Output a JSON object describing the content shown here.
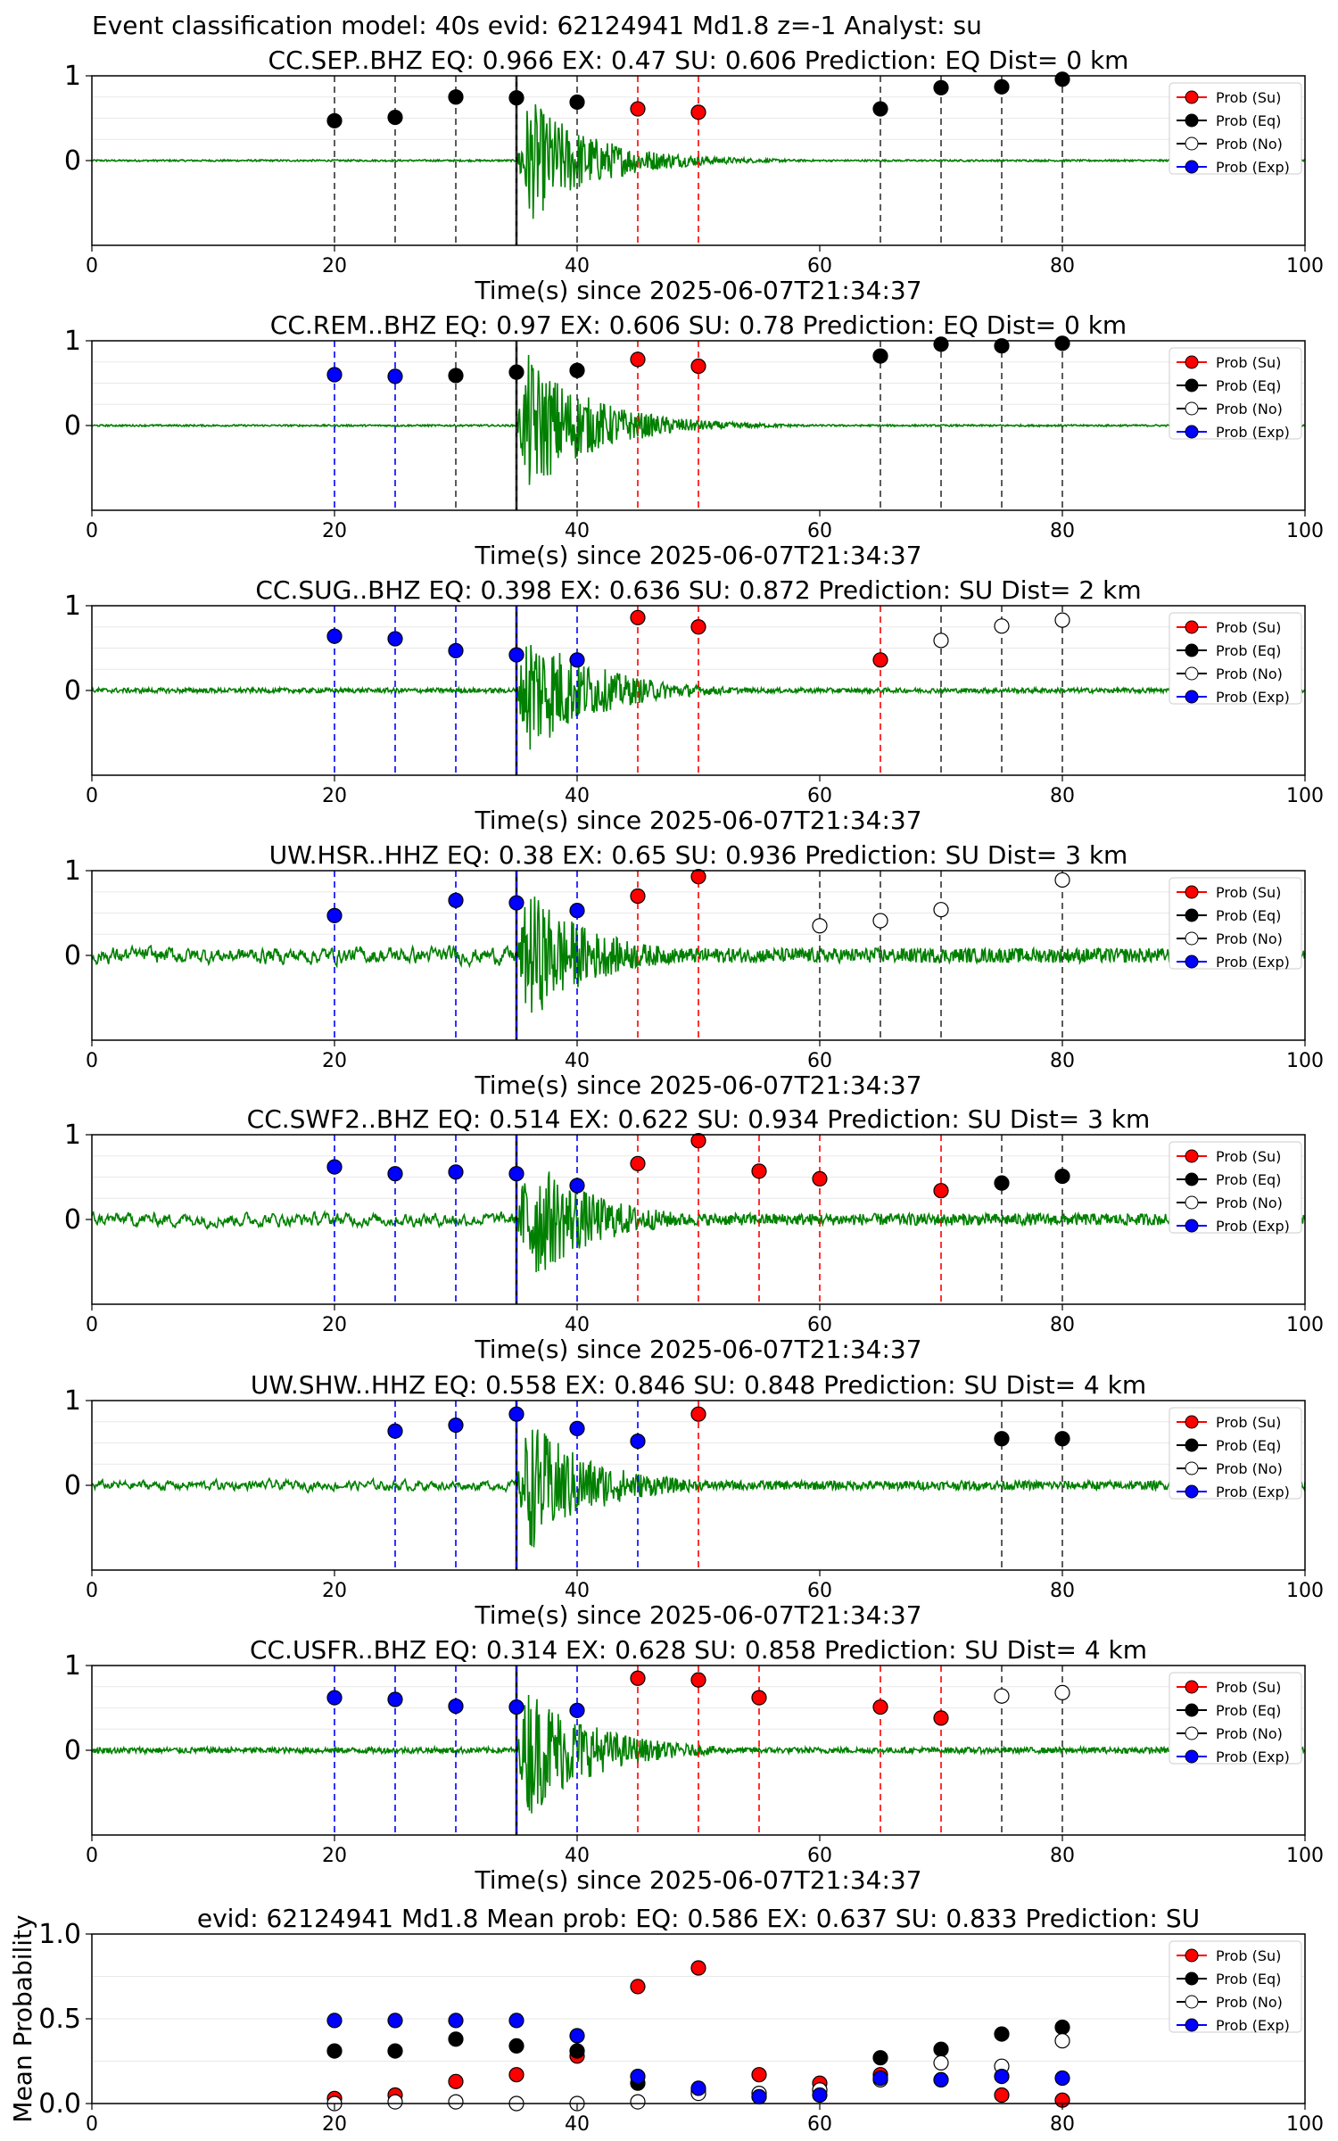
{
  "suptitle": "Event classification model: 40s evid: 62124941 Md1.8 z=-1 Analyst: su",
  "legend": {
    "items": [
      {
        "label": "Prob (Su)",
        "color": "#ff0000",
        "fill": "red"
      },
      {
        "label": "Prob (Eq)",
        "color": "#000000",
        "fill": "black"
      },
      {
        "label": "Prob (No)",
        "color": "#000000",
        "fill": "white"
      },
      {
        "label": "Prob (Exp)",
        "color": "#0000ff",
        "fill": "blue"
      }
    ]
  },
  "colors": {
    "waveform": "#008000",
    "su": "#ff0000",
    "eq": "#000000",
    "no": "#ffffff",
    "exp": "#0000ff",
    "pick": "#000000"
  },
  "chart_data": [
    {
      "type": "scatter",
      "station": "CC.SEP..BHZ",
      "title": "CC.SEP..BHZ   EQ: 0.966  EX: 0.47  SU: 0.606   Prediction: EQ    Dist= 0 km",
      "xlabel": "Time(s) since 2025-06-07T21:34:37",
      "xlim": [
        0,
        100
      ],
      "ylim": [
        -1,
        1
      ],
      "yticks": [
        0,
        1
      ],
      "xticks": [
        0,
        20,
        40,
        60,
        80,
        100
      ],
      "pick_time": 35,
      "noise": 0.03,
      "amp": 0.9,
      "points": [
        {
          "x": 20,
          "y": 0.47,
          "c": "eq"
        },
        {
          "x": 25,
          "y": 0.51,
          "c": "eq"
        },
        {
          "x": 30,
          "y": 0.75,
          "c": "eq"
        },
        {
          "x": 35,
          "y": 0.74,
          "c": "eq"
        },
        {
          "x": 40,
          "y": 0.69,
          "c": "eq"
        },
        {
          "x": 45,
          "y": 0.61,
          "c": "su"
        },
        {
          "x": 50,
          "y": 0.57,
          "c": "su"
        },
        {
          "x": 65,
          "y": 0.61,
          "c": "eq"
        },
        {
          "x": 70,
          "y": 0.86,
          "c": "eq"
        },
        {
          "x": 75,
          "y": 0.87,
          "c": "eq"
        },
        {
          "x": 80,
          "y": 0.96,
          "c": "eq"
        }
      ]
    },
    {
      "type": "scatter",
      "station": "CC.REM..BHZ",
      "title": "CC.REM..BHZ   EQ: 0.97  EX: 0.606  SU: 0.78   Prediction: EQ    Dist= 0 km",
      "xlabel": "Time(s) since 2025-06-07T21:34:37",
      "xlim": [
        0,
        100
      ],
      "ylim": [
        -1,
        1
      ],
      "yticks": [
        0,
        1
      ],
      "xticks": [
        0,
        20,
        40,
        60,
        80,
        100
      ],
      "pick_time": 35,
      "noise": 0.03,
      "amp": 1.0,
      "points": [
        {
          "x": 20,
          "y": 0.6,
          "c": "exp"
        },
        {
          "x": 25,
          "y": 0.58,
          "c": "exp"
        },
        {
          "x": 30,
          "y": 0.59,
          "c": "eq"
        },
        {
          "x": 35,
          "y": 0.63,
          "c": "eq"
        },
        {
          "x": 40,
          "y": 0.65,
          "c": "eq"
        },
        {
          "x": 45,
          "y": 0.78,
          "c": "su"
        },
        {
          "x": 50,
          "y": 0.7,
          "c": "su"
        },
        {
          "x": 65,
          "y": 0.82,
          "c": "eq"
        },
        {
          "x": 70,
          "y": 0.96,
          "c": "eq"
        },
        {
          "x": 75,
          "y": 0.94,
          "c": "eq"
        },
        {
          "x": 80,
          "y": 0.97,
          "c": "eq"
        }
      ]
    },
    {
      "type": "scatter",
      "station": "CC.SUG..BHZ",
      "title": "CC.SUG..BHZ   EQ: 0.398  EX: 0.636  SU: 0.872   Prediction: SU    Dist= 2 km",
      "xlabel": "Time(s) since 2025-06-07T21:34:37",
      "xlim": [
        0,
        100
      ],
      "ylim": [
        -1,
        1
      ],
      "yticks": [
        0,
        1
      ],
      "xticks": [
        0,
        20,
        40,
        60,
        80,
        100
      ],
      "pick_time": 35,
      "noise": 0.08,
      "amp": 0.95,
      "points": [
        {
          "x": 20,
          "y": 0.64,
          "c": "exp"
        },
        {
          "x": 25,
          "y": 0.61,
          "c": "exp"
        },
        {
          "x": 30,
          "y": 0.47,
          "c": "exp"
        },
        {
          "x": 35,
          "y": 0.42,
          "c": "exp"
        },
        {
          "x": 40,
          "y": 0.36,
          "c": "exp"
        },
        {
          "x": 45,
          "y": 0.86,
          "c": "su"
        },
        {
          "x": 50,
          "y": 0.75,
          "c": "su"
        },
        {
          "x": 65,
          "y": 0.36,
          "c": "su"
        },
        {
          "x": 70,
          "y": 0.59,
          "c": "no"
        },
        {
          "x": 75,
          "y": 0.76,
          "c": "no"
        },
        {
          "x": 80,
          "y": 0.83,
          "c": "no"
        }
      ]
    },
    {
      "type": "scatter",
      "station": "UW.HSR..HHZ",
      "title": "UW.HSR..HHZ   EQ: 0.38  EX: 0.65  SU: 0.936   Prediction: SU    Dist= 3 km",
      "xlabel": "Time(s) since 2025-06-07T21:34:37",
      "xlim": [
        0,
        100
      ],
      "ylim": [
        -1,
        1
      ],
      "yticks": [
        0,
        1
      ],
      "xticks": [
        0,
        20,
        40,
        60,
        80,
        100
      ],
      "pick_time": 35,
      "noise": 0.25,
      "amp": 0.95,
      "points": [
        {
          "x": 20,
          "y": 0.47,
          "c": "exp"
        },
        {
          "x": 30,
          "y": 0.65,
          "c": "exp"
        },
        {
          "x": 35,
          "y": 0.62,
          "c": "exp"
        },
        {
          "x": 40,
          "y": 0.53,
          "c": "exp"
        },
        {
          "x": 45,
          "y": 0.7,
          "c": "su"
        },
        {
          "x": 50,
          "y": 0.93,
          "c": "su"
        },
        {
          "x": 60,
          "y": 0.35,
          "c": "no"
        },
        {
          "x": 65,
          "y": 0.41,
          "c": "no"
        },
        {
          "x": 70,
          "y": 0.54,
          "c": "no"
        },
        {
          "x": 80,
          "y": 0.89,
          "c": "no"
        }
      ]
    },
    {
      "type": "scatter",
      "station": "CC.SWF2..BHZ",
      "title": "CC.SWF2..BHZ   EQ: 0.514  EX: 0.622  SU: 0.934   Prediction: SU    Dist= 3 km",
      "xlabel": "Time(s) since 2025-06-07T21:34:37",
      "xlim": [
        0,
        100
      ],
      "ylim": [
        -1,
        1
      ],
      "yticks": [
        0,
        1
      ],
      "xticks": [
        0,
        20,
        40,
        60,
        80,
        100
      ],
      "pick_time": 35,
      "noise": 0.2,
      "amp": 0.95,
      "points": [
        {
          "x": 20,
          "y": 0.62,
          "c": "exp"
        },
        {
          "x": 25,
          "y": 0.54,
          "c": "exp"
        },
        {
          "x": 30,
          "y": 0.56,
          "c": "exp"
        },
        {
          "x": 35,
          "y": 0.54,
          "c": "exp"
        },
        {
          "x": 40,
          "y": 0.4,
          "c": "exp"
        },
        {
          "x": 45,
          "y": 0.66,
          "c": "su"
        },
        {
          "x": 50,
          "y": 0.93,
          "c": "su"
        },
        {
          "x": 55,
          "y": 0.57,
          "c": "su"
        },
        {
          "x": 60,
          "y": 0.48,
          "c": "su"
        },
        {
          "x": 70,
          "y": 0.34,
          "c": "su"
        },
        {
          "x": 75,
          "y": 0.43,
          "c": "eq"
        },
        {
          "x": 80,
          "y": 0.51,
          "c": "eq"
        }
      ]
    },
    {
      "type": "scatter",
      "station": "UW.SHW..HHZ",
      "title": "UW.SHW..HHZ   EQ: 0.558  EX: 0.846  SU: 0.848   Prediction: SU    Dist= 4 km",
      "xlabel": "Time(s) since 2025-06-07T21:34:37",
      "xlim": [
        0,
        100
      ],
      "ylim": [
        -1,
        1
      ],
      "yticks": [
        0,
        1
      ],
      "xticks": [
        0,
        20,
        40,
        60,
        80,
        100
      ],
      "pick_time": 35,
      "noise": 0.15,
      "amp": 0.95,
      "points": [
        {
          "x": 25,
          "y": 0.64,
          "c": "exp"
        },
        {
          "x": 30,
          "y": 0.71,
          "c": "exp"
        },
        {
          "x": 35,
          "y": 0.84,
          "c": "exp"
        },
        {
          "x": 40,
          "y": 0.67,
          "c": "exp"
        },
        {
          "x": 45,
          "y": 0.52,
          "c": "exp"
        },
        {
          "x": 50,
          "y": 0.84,
          "c": "su"
        },
        {
          "x": 75,
          "y": 0.55,
          "c": "eq"
        },
        {
          "x": 80,
          "y": 0.55,
          "c": "eq"
        }
      ]
    },
    {
      "type": "scatter",
      "station": "CC.USFR..BHZ",
      "title": "CC.USFR..BHZ   EQ: 0.314  EX: 0.628  SU: 0.858   Prediction: SU    Dist= 4 km",
      "xlabel": "Time(s) since 2025-06-07T21:34:37",
      "xlim": [
        0,
        100
      ],
      "ylim": [
        -1,
        1
      ],
      "yticks": [
        0,
        1
      ],
      "xticks": [
        0,
        20,
        40,
        60,
        80,
        100
      ],
      "pick_time": 35,
      "noise": 0.1,
      "amp": 0.95,
      "points": [
        {
          "x": 20,
          "y": 0.62,
          "c": "exp"
        },
        {
          "x": 25,
          "y": 0.6,
          "c": "exp"
        },
        {
          "x": 30,
          "y": 0.52,
          "c": "exp"
        },
        {
          "x": 35,
          "y": 0.51,
          "c": "exp"
        },
        {
          "x": 40,
          "y": 0.47,
          "c": "exp"
        },
        {
          "x": 45,
          "y": 0.85,
          "c": "su"
        },
        {
          "x": 50,
          "y": 0.83,
          "c": "su"
        },
        {
          "x": 55,
          "y": 0.62,
          "c": "su"
        },
        {
          "x": 65,
          "y": 0.51,
          "c": "su"
        },
        {
          "x": 70,
          "y": 0.38,
          "c": "su"
        },
        {
          "x": 75,
          "y": 0.64,
          "c": "no"
        },
        {
          "x": 80,
          "y": 0.68,
          "c": "no"
        }
      ]
    },
    {
      "type": "scatter",
      "station": "mean",
      "title": "evid: 62124941  Md1.8   Mean prob:   EQ: 0.586  EX: 0.637  SU: 0.833   Prediction: SU",
      "xlabel": "",
      "ylabel": "Mean Probability",
      "xlim": [
        0,
        100
      ],
      "ylim": [
        0,
        1
      ],
      "yticks": [
        0.0,
        0.5,
        1.0
      ],
      "ytick_labels": [
        "0.0",
        "0.5",
        "1.0"
      ],
      "xticks": [
        0,
        20,
        40,
        60,
        80,
        100
      ],
      "series": [
        {
          "name": "Prob (Su)",
          "c": "su",
          "x": [
            20,
            25,
            30,
            35,
            40,
            45,
            50,
            55,
            60,
            65,
            70,
            75,
            80
          ],
          "y": [
            0.03,
            0.05,
            0.13,
            0.17,
            0.28,
            0.69,
            0.8,
            0.17,
            0.12,
            0.17,
            0.14,
            0.05,
            0.02
          ]
        },
        {
          "name": "Prob (Eq)",
          "c": "eq",
          "x": [
            20,
            25,
            30,
            35,
            40,
            45,
            50,
            55,
            60,
            65,
            70,
            75,
            80
          ],
          "y": [
            0.31,
            0.31,
            0.38,
            0.34,
            0.31,
            0.12,
            0.08,
            0.04,
            0.08,
            0.27,
            0.32,
            0.41,
            0.45
          ]
        },
        {
          "name": "Prob (No)",
          "c": "no",
          "x": [
            20,
            25,
            30,
            35,
            40,
            45,
            50,
            55,
            60,
            65,
            70,
            75,
            80
          ],
          "y": [
            0.0,
            0.01,
            0.01,
            0.0,
            0.0,
            0.01,
            0.06,
            0.06,
            0.08,
            0.14,
            0.24,
            0.22,
            0.37
          ]
        },
        {
          "name": "Prob (Exp)",
          "c": "exp",
          "x": [
            20,
            25,
            30,
            35,
            40,
            45,
            50,
            55,
            60,
            65,
            70,
            75,
            80
          ],
          "y": [
            0.49,
            0.49,
            0.49,
            0.49,
            0.4,
            0.16,
            0.09,
            0.04,
            0.05,
            0.15,
            0.14,
            0.16,
            0.15
          ]
        }
      ]
    }
  ]
}
